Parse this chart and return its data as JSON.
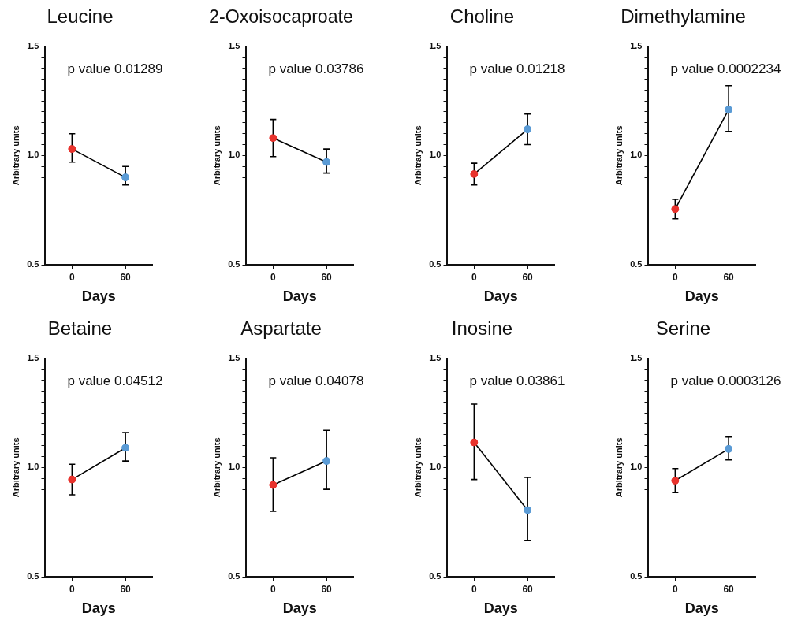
{
  "chart_data": [
    {
      "type": "line",
      "title": "Leucine",
      "xlabel": "Days",
      "ylabel": "Arbitrary units",
      "annotations": [
        "p value 0.01289"
      ],
      "categories": [
        "0",
        "60"
      ],
      "ylim": [
        0.5,
        1.5
      ],
      "yticks": [
        {
          "value": 0.5,
          "label": "0.5"
        },
        {
          "value": 0.55,
          "label": null
        },
        {
          "value": 0.6,
          "label": null
        },
        {
          "value": 0.65,
          "label": null
        },
        {
          "value": 0.7,
          "label": null
        },
        {
          "value": 0.75,
          "label": null
        },
        {
          "value": 0.8,
          "label": null
        },
        {
          "value": 0.85,
          "label": null
        },
        {
          "value": 0.9,
          "label": null
        },
        {
          "value": 0.95,
          "label": null
        },
        {
          "value": 1.0,
          "label": "1.0"
        },
        {
          "value": 1.05,
          "label": null
        },
        {
          "value": 1.1,
          "label": null
        },
        {
          "value": 1.15,
          "label": null
        },
        {
          "value": 1.2,
          "label": null
        },
        {
          "value": 1.25,
          "label": null
        },
        {
          "value": 1.3,
          "label": null
        },
        {
          "value": 1.35,
          "label": null
        },
        {
          "value": 1.4,
          "label": null
        },
        {
          "value": 1.45,
          "label": null
        },
        {
          "value": 1.5,
          "label": "1.5"
        }
      ],
      "grid": false,
      "legend": false,
      "marker": "circle",
      "series": [
        {
          "color": "#000000",
          "colors": [
            "#e8332d",
            "#5b9bd5"
          ],
          "values": [
            1.03,
            0.9
          ],
          "errors": [
            [
              0.97,
              1.1
            ],
            [
              0.865,
              0.95
            ]
          ]
        }
      ]
    },
    {
      "type": "line",
      "title": "2-Oxoisocaproate",
      "xlabel": "Days",
      "ylabel": "Arbitrary units",
      "annotations": [
        "p value 0.03786"
      ],
      "categories": [
        "0",
        "60"
      ],
      "ylim": [
        0.5,
        1.5
      ],
      "yticks": [
        {
          "value": 0.5,
          "label": "0.5"
        },
        {
          "value": 0.55,
          "label": null
        },
        {
          "value": 0.6,
          "label": null
        },
        {
          "value": 0.65,
          "label": null
        },
        {
          "value": 0.7,
          "label": null
        },
        {
          "value": 0.75,
          "label": null
        },
        {
          "value": 0.8,
          "label": null
        },
        {
          "value": 0.85,
          "label": null
        },
        {
          "value": 0.9,
          "label": null
        },
        {
          "value": 0.95,
          "label": null
        },
        {
          "value": 1.0,
          "label": "1.0"
        },
        {
          "value": 1.05,
          "label": null
        },
        {
          "value": 1.1,
          "label": null
        },
        {
          "value": 1.15,
          "label": null
        },
        {
          "value": 1.2,
          "label": null
        },
        {
          "value": 1.25,
          "label": null
        },
        {
          "value": 1.3,
          "label": null
        },
        {
          "value": 1.35,
          "label": null
        },
        {
          "value": 1.4,
          "label": null
        },
        {
          "value": 1.45,
          "label": null
        },
        {
          "value": 1.5,
          "label": "1.5"
        }
      ],
      "grid": false,
      "legend": false,
      "marker": "circle",
      "series": [
        {
          "color": "#000000",
          "colors": [
            "#e8332d",
            "#5b9bd5"
          ],
          "values": [
            1.08,
            0.97
          ],
          "errors": [
            [
              0.995,
              1.165
            ],
            [
              0.92,
              1.03
            ]
          ]
        }
      ]
    },
    {
      "type": "line",
      "title": "Choline",
      "xlabel": "Days",
      "ylabel": "Arbitrary units",
      "annotations": [
        "p value 0.01218"
      ],
      "categories": [
        "0",
        "60"
      ],
      "ylim": [
        0.5,
        1.5
      ],
      "yticks": [
        {
          "value": 0.5,
          "label": "0.5"
        },
        {
          "value": 0.55,
          "label": null
        },
        {
          "value": 0.6,
          "label": null
        },
        {
          "value": 0.65,
          "label": null
        },
        {
          "value": 0.7,
          "label": null
        },
        {
          "value": 0.75,
          "label": null
        },
        {
          "value": 0.8,
          "label": null
        },
        {
          "value": 0.85,
          "label": null
        },
        {
          "value": 0.9,
          "label": null
        },
        {
          "value": 0.95,
          "label": null
        },
        {
          "value": 1.0,
          "label": "1.0"
        },
        {
          "value": 1.05,
          "label": null
        },
        {
          "value": 1.1,
          "label": null
        },
        {
          "value": 1.15,
          "label": null
        },
        {
          "value": 1.2,
          "label": null
        },
        {
          "value": 1.25,
          "label": null
        },
        {
          "value": 1.3,
          "label": null
        },
        {
          "value": 1.35,
          "label": null
        },
        {
          "value": 1.4,
          "label": null
        },
        {
          "value": 1.45,
          "label": null
        },
        {
          "value": 1.5,
          "label": "1.5"
        }
      ],
      "grid": false,
      "legend": false,
      "marker": "circle",
      "series": [
        {
          "color": "#000000",
          "colors": [
            "#e8332d",
            "#5b9bd5"
          ],
          "values": [
            0.915,
            1.12
          ],
          "errors": [
            [
              0.865,
              0.965
            ],
            [
              1.05,
              1.19
            ]
          ]
        }
      ]
    },
    {
      "type": "line",
      "title": "Dimethylamine",
      "xlabel": "Days",
      "ylabel": "Arbitrary units",
      "annotations": [
        "p value 0.0002234"
      ],
      "categories": [
        "0",
        "60"
      ],
      "ylim": [
        0.5,
        1.5
      ],
      "yticks": [
        {
          "value": 0.5,
          "label": "0.5"
        },
        {
          "value": 0.55,
          "label": null
        },
        {
          "value": 0.6,
          "label": null
        },
        {
          "value": 0.65,
          "label": null
        },
        {
          "value": 0.7,
          "label": null
        },
        {
          "value": 0.75,
          "label": null
        },
        {
          "value": 0.8,
          "label": null
        },
        {
          "value": 0.85,
          "label": null
        },
        {
          "value": 0.9,
          "label": null
        },
        {
          "value": 0.95,
          "label": null
        },
        {
          "value": 1.0,
          "label": "1.0"
        },
        {
          "value": 1.05,
          "label": null
        },
        {
          "value": 1.1,
          "label": null
        },
        {
          "value": 1.15,
          "label": null
        },
        {
          "value": 1.2,
          "label": null
        },
        {
          "value": 1.25,
          "label": null
        },
        {
          "value": 1.3,
          "label": null
        },
        {
          "value": 1.35,
          "label": null
        },
        {
          "value": 1.4,
          "label": null
        },
        {
          "value": 1.45,
          "label": null
        },
        {
          "value": 1.5,
          "label": "1.5"
        }
      ],
      "grid": false,
      "legend": false,
      "marker": "circle",
      "series": [
        {
          "color": "#000000",
          "colors": [
            "#e8332d",
            "#5b9bd5"
          ],
          "values": [
            0.755,
            1.21
          ],
          "errors": [
            [
              0.71,
              0.8
            ],
            [
              1.11,
              1.32
            ]
          ]
        }
      ]
    },
    {
      "type": "line",
      "title": "Betaine",
      "xlabel": "Days",
      "ylabel": "Arbitrary units",
      "annotations": [
        "p value 0.04512"
      ],
      "categories": [
        "0",
        "60"
      ],
      "ylim": [
        0.5,
        1.5
      ],
      "yticks": [
        {
          "value": 0.5,
          "label": "0.5"
        },
        {
          "value": 0.55,
          "label": null
        },
        {
          "value": 0.6,
          "label": null
        },
        {
          "value": 0.65,
          "label": null
        },
        {
          "value": 0.7,
          "label": null
        },
        {
          "value": 0.75,
          "label": null
        },
        {
          "value": 0.8,
          "label": null
        },
        {
          "value": 0.85,
          "label": null
        },
        {
          "value": 0.9,
          "label": null
        },
        {
          "value": 0.95,
          "label": null
        },
        {
          "value": 1.0,
          "label": "1.0"
        },
        {
          "value": 1.05,
          "label": null
        },
        {
          "value": 1.1,
          "label": null
        },
        {
          "value": 1.15,
          "label": null
        },
        {
          "value": 1.2,
          "label": null
        },
        {
          "value": 1.25,
          "label": null
        },
        {
          "value": 1.3,
          "label": null
        },
        {
          "value": 1.35,
          "label": null
        },
        {
          "value": 1.4,
          "label": null
        },
        {
          "value": 1.45,
          "label": null
        },
        {
          "value": 1.5,
          "label": "1.5"
        }
      ],
      "grid": false,
      "legend": false,
      "marker": "circle",
      "series": [
        {
          "color": "#000000",
          "colors": [
            "#e8332d",
            "#5b9bd5"
          ],
          "values": [
            0.945,
            1.09
          ],
          "errors": [
            [
              0.875,
              1.015
            ],
            [
              1.03,
              1.16
            ]
          ]
        }
      ]
    },
    {
      "type": "line",
      "title": "Aspartate",
      "xlabel": "Days",
      "ylabel": "Arbitrary units",
      "annotations": [
        "p value 0.04078"
      ],
      "categories": [
        "0",
        "60"
      ],
      "ylim": [
        0.5,
        1.5
      ],
      "yticks": [
        {
          "value": 0.5,
          "label": "0.5"
        },
        {
          "value": 0.55,
          "label": null
        },
        {
          "value": 0.6,
          "label": null
        },
        {
          "value": 0.65,
          "label": null
        },
        {
          "value": 0.7,
          "label": null
        },
        {
          "value": 0.75,
          "label": null
        },
        {
          "value": 0.8,
          "label": null
        },
        {
          "value": 0.85,
          "label": null
        },
        {
          "value": 0.9,
          "label": null
        },
        {
          "value": 0.95,
          "label": null
        },
        {
          "value": 1.0,
          "label": "1.0"
        },
        {
          "value": 1.05,
          "label": null
        },
        {
          "value": 1.1,
          "label": null
        },
        {
          "value": 1.15,
          "label": null
        },
        {
          "value": 1.2,
          "label": null
        },
        {
          "value": 1.25,
          "label": null
        },
        {
          "value": 1.3,
          "label": null
        },
        {
          "value": 1.35,
          "label": null
        },
        {
          "value": 1.4,
          "label": null
        },
        {
          "value": 1.45,
          "label": null
        },
        {
          "value": 1.5,
          "label": "1.5"
        }
      ],
      "grid": false,
      "legend": false,
      "marker": "circle",
      "series": [
        {
          "color": "#000000",
          "colors": [
            "#e8332d",
            "#5b9bd5"
          ],
          "values": [
            0.92,
            1.03
          ],
          "errors": [
            [
              0.8,
              1.045
            ],
            [
              0.9,
              1.17
            ]
          ]
        }
      ]
    },
    {
      "type": "line",
      "title": "Inosine",
      "xlabel": "Days",
      "ylabel": "Arbitrary units",
      "annotations": [
        "p value 0.03861"
      ],
      "categories": [
        "0",
        "60"
      ],
      "ylim": [
        0.5,
        1.5
      ],
      "yticks": [
        {
          "value": 0.5,
          "label": "0.5"
        },
        {
          "value": 0.55,
          "label": null
        },
        {
          "value": 0.6,
          "label": null
        },
        {
          "value": 0.65,
          "label": null
        },
        {
          "value": 0.7,
          "label": null
        },
        {
          "value": 0.75,
          "label": null
        },
        {
          "value": 0.8,
          "label": null
        },
        {
          "value": 0.85,
          "label": null
        },
        {
          "value": 0.9,
          "label": null
        },
        {
          "value": 0.95,
          "label": null
        },
        {
          "value": 1.0,
          "label": "1.0"
        },
        {
          "value": 1.05,
          "label": null
        },
        {
          "value": 1.1,
          "label": null
        },
        {
          "value": 1.15,
          "label": null
        },
        {
          "value": 1.2,
          "label": null
        },
        {
          "value": 1.25,
          "label": null
        },
        {
          "value": 1.3,
          "label": null
        },
        {
          "value": 1.35,
          "label": null
        },
        {
          "value": 1.4,
          "label": null
        },
        {
          "value": 1.45,
          "label": null
        },
        {
          "value": 1.5,
          "label": "1.5"
        }
      ],
      "grid": false,
      "legend": false,
      "marker": "circle",
      "series": [
        {
          "color": "#000000",
          "colors": [
            "#e8332d",
            "#5b9bd5"
          ],
          "values": [
            1.115,
            0.805
          ],
          "errors": [
            [
              0.945,
              1.29
            ],
            [
              0.665,
              0.955
            ]
          ]
        }
      ]
    },
    {
      "type": "line",
      "title": "Serine",
      "xlabel": "Days",
      "ylabel": "Arbitrary units",
      "annotations": [
        "p value 0.0003126"
      ],
      "categories": [
        "0",
        "60"
      ],
      "ylim": [
        0.5,
        1.5
      ],
      "yticks": [
        {
          "value": 0.5,
          "label": "0.5"
        },
        {
          "value": 0.55,
          "label": null
        },
        {
          "value": 0.6,
          "label": null
        },
        {
          "value": 0.65,
          "label": null
        },
        {
          "value": 0.7,
          "label": null
        },
        {
          "value": 0.75,
          "label": null
        },
        {
          "value": 0.8,
          "label": null
        },
        {
          "value": 0.85,
          "label": null
        },
        {
          "value": 0.9,
          "label": null
        },
        {
          "value": 0.95,
          "label": null
        },
        {
          "value": 1.0,
          "label": "1.0"
        },
        {
          "value": 1.05,
          "label": null
        },
        {
          "value": 1.1,
          "label": null
        },
        {
          "value": 1.15,
          "label": null
        },
        {
          "value": 1.2,
          "label": null
        },
        {
          "value": 1.25,
          "label": null
        },
        {
          "value": 1.3,
          "label": null
        },
        {
          "value": 1.35,
          "label": null
        },
        {
          "value": 1.4,
          "label": null
        },
        {
          "value": 1.45,
          "label": null
        },
        {
          "value": 1.5,
          "label": "1.5"
        }
      ],
      "grid": false,
      "legend": false,
      "marker": "circle",
      "series": [
        {
          "color": "#000000",
          "colors": [
            "#e8332d",
            "#5b9bd5"
          ],
          "values": [
            0.94,
            1.085
          ],
          "errors": [
            [
              0.885,
              0.995
            ],
            [
              1.035,
              1.14
            ]
          ]
        }
      ]
    }
  ]
}
